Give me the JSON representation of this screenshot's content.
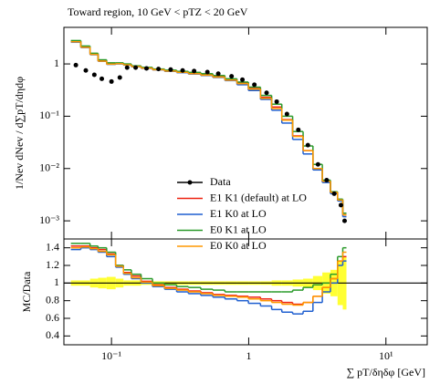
{
  "chart_data": [
    {
      "type": "step",
      "title": "Toward region, 10 GeV < pTZ < 20 GeV",
      "y_label": "1/Nev dNev / d∑pT/dηdφ",
      "log_x": true,
      "log_y": true,
      "xlim": [
        0.045,
        20
      ],
      "ylim": [
        0.00045,
        5
      ],
      "xticks": [
        {
          "value": 0.1,
          "label": "10⁻¹"
        },
        1,
        {
          "value": 10,
          "label": "10¹"
        }
      ],
      "yticks": [
        {
          "value": 0.001,
          "label": "10⁻³"
        },
        {
          "value": 0.01,
          "label": "10⁻²"
        },
        {
          "value": 0.1,
          "label": "10⁻¹"
        },
        1
      ],
      "x": [
        0.055,
        0.065,
        0.075,
        0.085,
        0.1,
        0.115,
        0.13,
        0.15,
        0.18,
        0.22,
        0.27,
        0.33,
        0.4,
        0.5,
        0.6,
        0.75,
        0.9,
        1.1,
        1.35,
        1.6,
        1.9,
        2.3,
        2.7,
        3.2,
        3.7,
        4.2,
        4.7,
        5.0
      ],
      "series": [
        {
          "name": "Data",
          "color": "#000000",
          "marker": "dot",
          "values": [
            0.95,
            0.75,
            0.62,
            0.52,
            0.46,
            0.55,
            0.85,
            0.85,
            0.82,
            0.8,
            0.78,
            0.75,
            0.73,
            0.7,
            0.65,
            0.58,
            0.5,
            0.4,
            0.28,
            0.19,
            0.11,
            0.055,
            0.028,
            0.012,
            0.006,
            0.0033,
            0.002,
            0.001
          ]
        },
        {
          "name": "E1 K1 (default) at LO",
          "color": "#ee2211",
          "marker": "step",
          "values": [
            2.7,
            2.1,
            1.55,
            1.15,
            1.0,
            1.02,
            0.97,
            0.9,
            0.84,
            0.78,
            0.74,
            0.7,
            0.66,
            0.62,
            0.57,
            0.5,
            0.43,
            0.34,
            0.23,
            0.15,
            0.086,
            0.042,
            0.022,
            0.01,
            0.0057,
            0.0035,
            0.0025,
            0.0013
          ]
        },
        {
          "name": "E1 K0 at LO",
          "color": "#1f5fd0",
          "marker": "step",
          "values": [
            2.6,
            2.05,
            1.5,
            1.12,
            0.98,
            1.0,
            0.95,
            0.88,
            0.82,
            0.77,
            0.72,
            0.68,
            0.64,
            0.6,
            0.55,
            0.48,
            0.4,
            0.31,
            0.21,
            0.13,
            0.074,
            0.036,
            0.019,
            0.0094,
            0.0054,
            0.0033,
            0.0024,
            0.0012
          ]
        },
        {
          "name": "E0 K1 at LO",
          "color": "#2a9a2a",
          "marker": "step",
          "values": [
            2.8,
            2.2,
            1.6,
            1.2,
            1.05,
            1.05,
            1.0,
            0.92,
            0.86,
            0.8,
            0.76,
            0.72,
            0.69,
            0.65,
            0.6,
            0.52,
            0.45,
            0.36,
            0.25,
            0.17,
            0.1,
            0.051,
            0.027,
            0.012,
            0.006,
            0.0036,
            0.0026,
            0.0014
          ]
        },
        {
          "name": "E0 K0 at LO",
          "color": "#ff9900",
          "marker": "step",
          "values": [
            2.65,
            2.08,
            1.52,
            1.13,
            0.99,
            1.01,
            0.96,
            0.89,
            0.83,
            0.775,
            0.73,
            0.69,
            0.65,
            0.61,
            0.56,
            0.49,
            0.42,
            0.33,
            0.22,
            0.14,
            0.084,
            0.041,
            0.022,
            0.01,
            0.0057,
            0.0035,
            0.0025,
            0.0013
          ]
        }
      ]
    },
    {
      "type": "ratio",
      "x_label": "∑ pT/δηδφ [GeV]",
      "y_label": "MC/Data",
      "log_x": true,
      "xlim": [
        0.045,
        20
      ],
      "ylim": [
        0.3,
        1.5
      ],
      "xticks": [
        {
          "value": 0.1,
          "label": "10⁻¹"
        },
        1,
        {
          "value": 10,
          "label": "10¹"
        }
      ],
      "yticks": [
        0.4,
        0.6,
        0.8,
        1,
        1.2,
        1.4
      ],
      "reference_line": 1,
      "band_color": "#ffff33",
      "band_lower": [
        0.97,
        0.97,
        0.95,
        0.94,
        0.93,
        0.95,
        0.97,
        0.97,
        0.98,
        0.98,
        0.98,
        0.98,
        0.98,
        0.98,
        0.98,
        0.98,
        0.98,
        0.98,
        0.98,
        0.97,
        0.97,
        0.96,
        0.95,
        0.92,
        0.88,
        0.85,
        0.75,
        0.7
      ],
      "band_upper": [
        1.03,
        1.03,
        1.05,
        1.06,
        1.07,
        1.05,
        1.03,
        1.03,
        1.02,
        1.02,
        1.02,
        1.02,
        1.02,
        1.02,
        1.02,
        1.02,
        1.02,
        1.02,
        1.02,
        1.03,
        1.03,
        1.04,
        1.05,
        1.08,
        1.12,
        1.15,
        1.25,
        1.3
      ],
      "x": [
        0.055,
        0.065,
        0.075,
        0.085,
        0.1,
        0.115,
        0.13,
        0.15,
        0.18,
        0.22,
        0.27,
        0.33,
        0.4,
        0.5,
        0.6,
        0.75,
        0.9,
        1.1,
        1.35,
        1.6,
        1.9,
        2.3,
        2.7,
        3.2,
        3.7,
        4.2,
        4.7,
        5.0
      ],
      "series": [
        {
          "color": "#ee2211",
          "values": [
            1.42,
            1.42,
            1.4,
            1.38,
            1.33,
            1.2,
            1.12,
            1.08,
            1.02,
            0.98,
            0.95,
            0.93,
            0.91,
            0.89,
            0.87,
            0.86,
            0.85,
            0.84,
            0.82,
            0.8,
            0.78,
            0.76,
            0.78,
            0.85,
            0.95,
            1.05,
            1.25,
            1.3
          ]
        },
        {
          "color": "#1f5fd0",
          "values": [
            1.38,
            1.4,
            1.38,
            1.35,
            1.3,
            1.18,
            1.1,
            1.05,
            1.0,
            0.96,
            0.93,
            0.9,
            0.88,
            0.86,
            0.84,
            0.82,
            0.8,
            0.77,
            0.74,
            0.7,
            0.67,
            0.65,
            0.68,
            0.78,
            0.9,
            1.0,
            1.2,
            1.25
          ]
        },
        {
          "color": "#2a9a2a",
          "values": [
            1.45,
            1.45,
            1.42,
            1.4,
            1.35,
            1.2,
            1.15,
            1.1,
            1.05,
            1.0,
            0.98,
            0.96,
            0.95,
            0.93,
            0.92,
            0.9,
            0.9,
            0.9,
            0.9,
            0.9,
            0.9,
            0.92,
            0.95,
            0.98,
            1.0,
            1.1,
            1.3,
            1.4
          ]
        },
        {
          "color": "#ff9900",
          "values": [
            1.4,
            1.41,
            1.39,
            1.36,
            1.32,
            1.19,
            1.11,
            1.06,
            1.01,
            0.97,
            0.94,
            0.92,
            0.9,
            0.88,
            0.86,
            0.85,
            0.84,
            0.82,
            0.8,
            0.78,
            0.76,
            0.75,
            0.78,
            0.85,
            0.95,
            1.05,
            1.25,
            1.35
          ]
        }
      ]
    }
  ]
}
